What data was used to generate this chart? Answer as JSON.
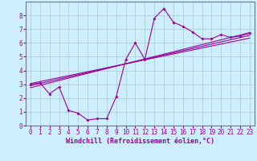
{
  "xlabel": "Windchill (Refroidissement éolien,°C)",
  "background_color": "#cceeff",
  "grid_color": "#aacccc",
  "line_color": "#990099",
  "spine_color": "#666699",
  "xlim": [
    -0.5,
    23.5
  ],
  "ylim": [
    0,
    9
  ],
  "xticks": [
    0,
    1,
    2,
    3,
    4,
    5,
    6,
    7,
    8,
    9,
    10,
    11,
    12,
    13,
    14,
    15,
    16,
    17,
    18,
    19,
    20,
    21,
    22,
    23
  ],
  "yticks": [
    0,
    1,
    2,
    3,
    4,
    5,
    6,
    7,
    8
  ],
  "main_x": [
    0,
    1,
    2,
    3,
    4,
    5,
    6,
    7,
    8,
    9,
    10,
    11,
    12,
    13,
    14,
    15,
    16,
    17,
    18,
    19,
    20,
    21,
    22,
    23
  ],
  "main_y": [
    3.0,
    3.1,
    2.3,
    2.8,
    1.1,
    0.9,
    0.4,
    0.5,
    0.5,
    2.1,
    4.8,
    6.0,
    4.8,
    7.8,
    8.5,
    7.5,
    7.2,
    6.8,
    6.3,
    6.3,
    6.6,
    6.4,
    6.5,
    6.7
  ],
  "reg_lines": [
    {
      "x": [
        0,
        23
      ],
      "y": [
        2.9,
        6.55
      ]
    },
    {
      "x": [
        0,
        23
      ],
      "y": [
        2.75,
        6.75
      ]
    },
    {
      "x": [
        0,
        23
      ],
      "y": [
        3.05,
        6.35
      ]
    }
  ],
  "tick_fontsize": 5.5,
  "xlabel_fontsize": 6.0
}
